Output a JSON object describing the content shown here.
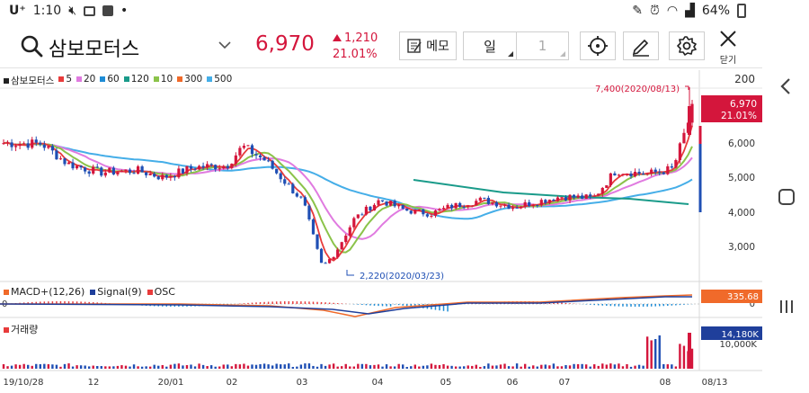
{
  "status_bar": {
    "carrier": "U⁺",
    "time": "1:10",
    "battery": "64%"
  },
  "header": {
    "stock_name": "삼보모터스",
    "price": "6,970",
    "change": "1,210",
    "change_pct": "21.01%",
    "memo_label": "메모",
    "period_unit": "일",
    "period_num": "1",
    "close_label": "닫기",
    "colors": {
      "up": "#d4163c",
      "down": "#1f4fb4"
    }
  },
  "legend": {
    "items": [
      {
        "label": "삼보모터스",
        "color": "#222222"
      },
      {
        "label": "5",
        "color": "#e83b3b"
      },
      {
        "label": "20",
        "color": "#e07be0"
      },
      {
        "label": "60",
        "color": "#1e8cd6"
      },
      {
        "label": "120",
        "color": "#1a9b8a"
      },
      {
        "label": "10",
        "color": "#8bc34a"
      },
      {
        "label": "300",
        "color": "#f06a2a"
      },
      {
        "label": "500",
        "color": "#45aee8"
      }
    ]
  },
  "macd_legend": {
    "items": [
      {
        "label": "MACD+(12,26)",
        "color": "#f06a2a"
      },
      {
        "label": "Signal(9)",
        "color": "#1f3f9b"
      },
      {
        "label": "OSC",
        "color": "#e83b3b"
      }
    ]
  },
  "volume_legend": {
    "label": "거래량",
    "color": "#e83b3b"
  },
  "chart_data": {
    "type": "candlestick",
    "price_axis_ticks": [
      "200",
      "6,000",
      "5,000",
      "4,000",
      "3,000"
    ],
    "x_ticks": [
      "19/10/28",
      "12",
      "20/01",
      "02",
      "03",
      "04",
      "05",
      "06",
      "07",
      "08",
      "08/13"
    ],
    "high_annotation": "7,400(2020/08/13)",
    "low_annotation": "2,220(2020/03/23)",
    "current_price_tag": {
      "price": "6,970",
      "pct": "21.01%"
    },
    "macd_value": "335.68",
    "macd_zero": "0",
    "volume_tag": "14,180K",
    "volume_axis": "10,000K"
  }
}
